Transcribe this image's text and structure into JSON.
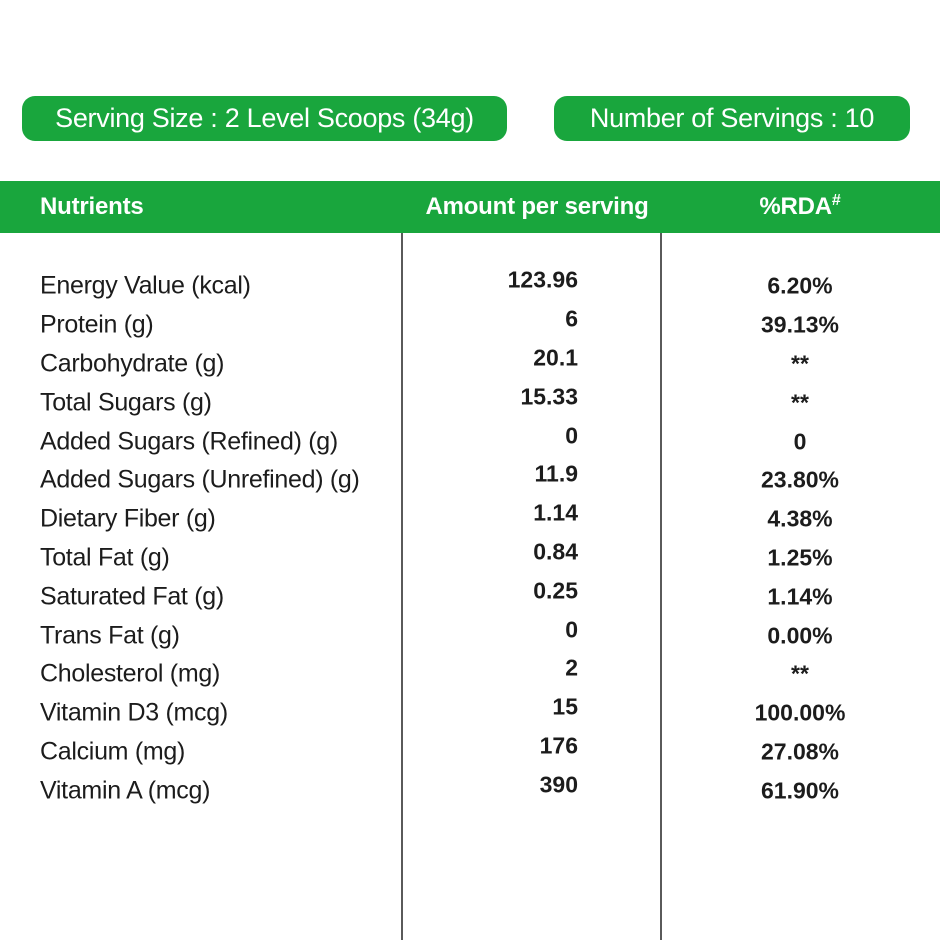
{
  "pills": {
    "serving_size": "Serving Size : 2 Level Scoops (34g)",
    "num_servings": "Number of Servings : 10"
  },
  "table": {
    "headers": {
      "nutrients": "Nutrients",
      "amount": "Amount per serving",
      "rda": "%RDA",
      "rda_mark": "#"
    },
    "rows": [
      {
        "label": "Energy Value (kcal)",
        "amount": "123.96",
        "rda": "6.20%"
      },
      {
        "label": "Protein (g)",
        "amount": "6",
        "rda": "39.13%"
      },
      {
        "label": "Carbohydrate (g)",
        "amount": "20.1",
        "rda": "**"
      },
      {
        "label": "Total Sugars (g)",
        "amount": "15.33",
        "rda": "**"
      },
      {
        "label": "Added Sugars (Refined) (g)",
        "amount": "0",
        "rda": "0"
      },
      {
        "label": "Added Sugars (Unrefined) (g)",
        "amount": "11.9",
        "rda": "23.80%"
      },
      {
        "label": "Dietary Fiber (g)",
        "amount": "1.14",
        "rda": "4.38%"
      },
      {
        "label": "Total Fat (g)",
        "amount": "0.84",
        "rda": "1.25%"
      },
      {
        "label": "Saturated Fat (g)",
        "amount": "0.25",
        "rda": "1.14%"
      },
      {
        "label": "Trans Fat (g)",
        "amount": "0",
        "rda": "0.00%"
      },
      {
        "label": "Cholesterol (mg)",
        "amount": "2",
        "rda": "**"
      },
      {
        "label": "Vitamin D3 (mcg)",
        "amount": "15",
        "rda": "100.00%"
      },
      {
        "label": "Calcium (mg)",
        "amount": "176",
        "rda": "27.08%"
      },
      {
        "label": "Vitamin A (mcg)",
        "amount": "390",
        "rda": "61.90%"
      }
    ]
  },
  "colors": {
    "accent_green": "#19a63d",
    "text": "#1c1c1c",
    "divider": "#5a5a5a"
  }
}
